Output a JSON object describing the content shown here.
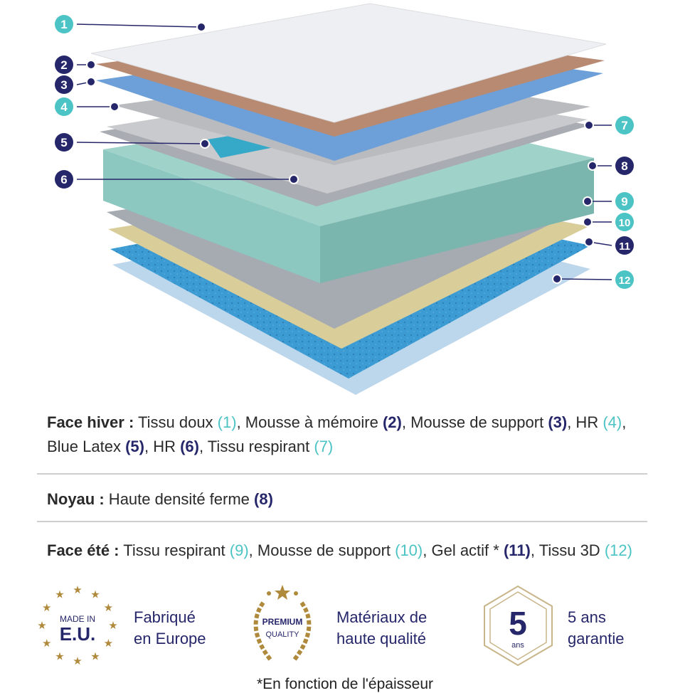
{
  "layers": [
    {
      "number": "1",
      "color": "#4cc3c4"
    },
    {
      "number": "2",
      "color": "#26266a"
    },
    {
      "number": "3",
      "color": "#26266a"
    },
    {
      "number": "4",
      "color": "#4cc3c4"
    },
    {
      "number": "5",
      "color": "#26266a"
    },
    {
      "number": "6",
      "color": "#26266a"
    },
    {
      "number": "7",
      "color": "#4cc3c4"
    },
    {
      "number": "8",
      "color": "#26266a"
    },
    {
      "number": "9",
      "color": "#4cc3c4"
    },
    {
      "number": "10",
      "color": "#4cc3c4"
    },
    {
      "number": "11",
      "color": "#26266a"
    },
    {
      "number": "12",
      "color": "#4cc3c4"
    }
  ],
  "winter": {
    "heading": "Face hiver :",
    "items": [
      {
        "name": " Tissu doux ",
        "ref": "(1)"
      },
      {
        "name": ", Mousse à mémoire ",
        "ref": "(2)"
      },
      {
        "name": ", Mousse de support ",
        "ref": "(3)"
      },
      {
        "name": ", HR ",
        "ref": "(4)"
      },
      {
        "name": ", Blue Latex ",
        "ref": "(5)"
      },
      {
        "name": ", HR ",
        "ref": "(6)"
      },
      {
        "name": ", Tissu respirant ",
        "ref": "(7)"
      }
    ]
  },
  "core": {
    "heading": "Noyau :",
    "items": [
      {
        "name": " Haute densité ferme ",
        "ref": "(8)"
      }
    ]
  },
  "summer": {
    "heading": "Face été :",
    "items": [
      {
        "name": " Tissu respirant ",
        "ref": "(9)"
      },
      {
        "name": ", Mousse de support ",
        "ref": "(10)"
      },
      {
        "name": ", Gel actif * ",
        "ref": "(11)"
      },
      {
        "name": ", Tissu 3D ",
        "ref": "(12)"
      }
    ]
  },
  "badges": {
    "eu": {
      "logo_top": "MADE IN",
      "logo_main": "E.U.",
      "line1": "Fabriqué",
      "line2": "en Europe"
    },
    "premium": {
      "logo_top": "PREMIUM",
      "logo_bottom": "QUALITY",
      "line1": "Matériaux de",
      "line2": "haute qualité"
    },
    "warranty": {
      "logo_main": "5",
      "logo_sub": "ans",
      "line1": "5 ans",
      "line2": "garantie"
    }
  },
  "footnote": "*En fonction de l'épaisseur",
  "colors": {
    "teal": "#4cc3c4",
    "navy": "#26266a",
    "gold": "#b08a3c"
  }
}
